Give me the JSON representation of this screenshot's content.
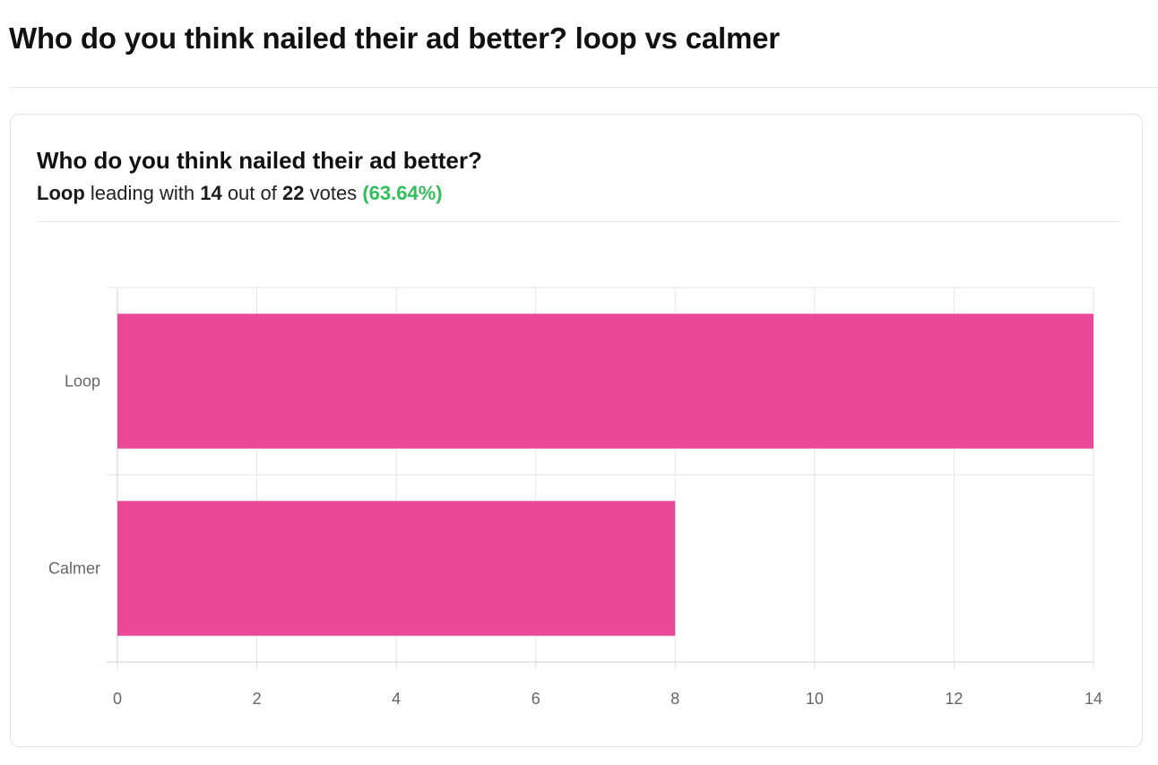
{
  "page": {
    "title": "Who do you think nailed their ad better? loop vs calmer"
  },
  "poll": {
    "question": "Who do you think nailed their ad better?",
    "summary": {
      "leader": "Loop",
      "text_leading_with": "leading with",
      "leader_votes": "14",
      "text_out_of": "out of",
      "total_votes": "22",
      "text_votes": "votes",
      "percent": "(63.64%)"
    }
  },
  "colors": {
    "bar": "#ec4899",
    "percent": "#2fbf5b"
  },
  "chart_data": {
    "type": "bar",
    "orientation": "horizontal",
    "categories": [
      "Loop",
      "Calmer"
    ],
    "values": [
      14,
      8
    ],
    "xlim": [
      0,
      14
    ],
    "xticks": [
      0,
      2,
      4,
      6,
      8,
      10,
      12,
      14
    ],
    "grid": true,
    "legend": "none"
  }
}
